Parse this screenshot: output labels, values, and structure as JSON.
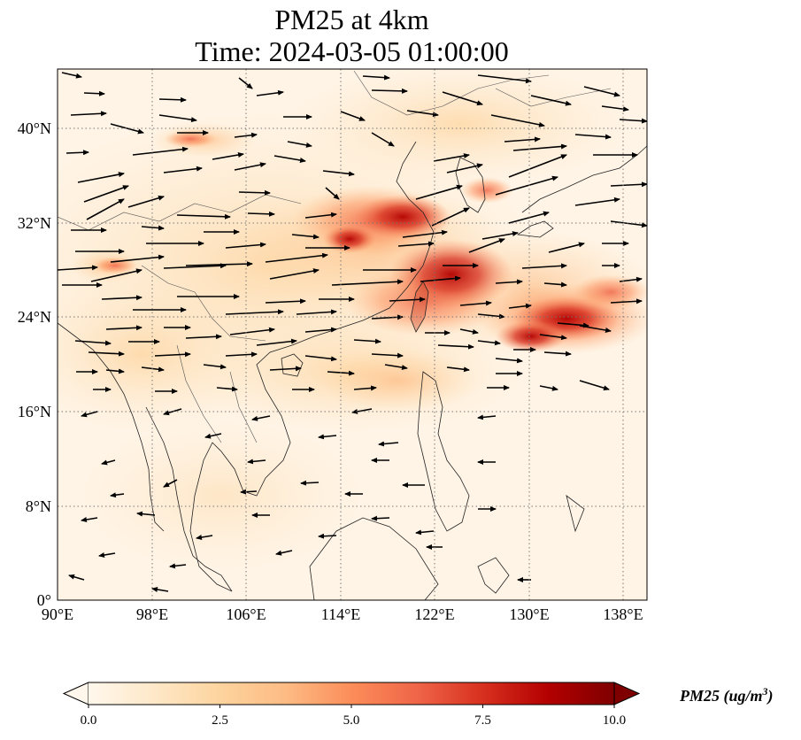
{
  "title": {
    "line1": "PM25 at 4km",
    "line2": "Time: 2024-03-05 01:00:00"
  },
  "map": {
    "lon_range": [
      90,
      140
    ],
    "lat_range": [
      0,
      45
    ],
    "projection": "PlateCarree",
    "gridlines": "dotted gray",
    "x_ticks": [
      "90°E",
      "98°E",
      "106°E",
      "114°E",
      "122°E",
      "130°E",
      "138°E"
    ],
    "y_ticks": [
      "0°",
      "8°N",
      "16°N",
      "24°N",
      "32°N",
      "40°N"
    ],
    "field": "PM25",
    "wind_vectors": "black quiver arrows, predominantly westerly north of 16°N and easterly/north-easterly south of 16°N"
  },
  "colorbar": {
    "colormap": "OrRd",
    "colors": [
      "#fff7ec",
      "#fee8c8",
      "#fdd49e",
      "#fdbb84",
      "#fc8d59",
      "#ef6548",
      "#d7301f",
      "#b30000",
      "#7f0000"
    ],
    "range": [
      0.0,
      10.0
    ],
    "extend": "both",
    "ticks": [
      "0.0",
      "2.5",
      "5.0",
      "7.5",
      "10.0"
    ],
    "label_main": "PM25 (ug/m",
    "label_sup": "3",
    "label_end": ")"
  }
}
